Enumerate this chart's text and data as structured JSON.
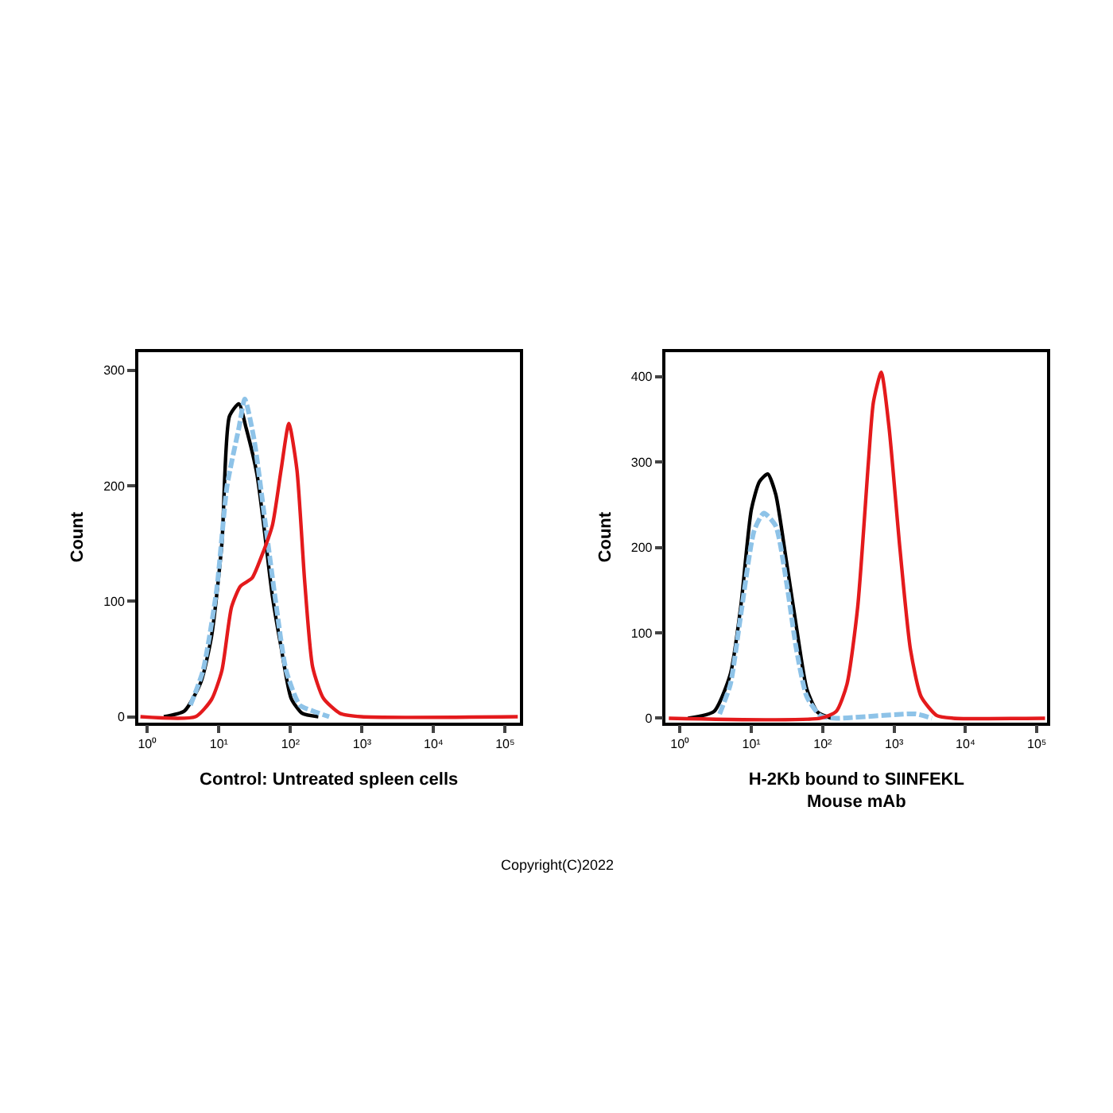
{
  "chart_data": [
    {
      "type": "line",
      "xlabel": "Control: Untreated spleen cells",
      "ylabel": "Count",
      "log": "x",
      "xlim": [
        0.74,
        160000
      ],
      "ylim": [
        -5,
        316
      ],
      "xticks": [
        {
          "value": 1,
          "label": "10⁰"
        },
        {
          "value": 10,
          "label": "10¹"
        },
        {
          "value": 100,
          "label": "10²"
        },
        {
          "value": 1000,
          "label": "10³"
        },
        {
          "value": 10000,
          "label": "10⁴"
        },
        {
          "value": 100000,
          "label": "10⁵"
        }
      ],
      "yticks": [
        0,
        100,
        200,
        300
      ],
      "series": [
        {
          "color": "#000000",
          "line_style": "solid",
          "x": [
            1.7,
            3.3,
            5.6,
            7.9,
            11,
            14,
            19,
            24,
            34,
            44,
            56,
            74,
            102,
            145,
            245
          ],
          "values": [
            0,
            5,
            30,
            70,
            150,
            260,
            271,
            250,
            210,
            157,
            104,
            60,
            16,
            3,
            0
          ]
        },
        {
          "color": "#8ec3e8",
          "line_style": "dashed",
          "x": [
            4.0,
            6.0,
            9.3,
            13,
            19,
            23,
            31,
            44,
            62,
            87,
            135,
            204,
            347
          ],
          "values": [
            10,
            40,
            110,
            200,
            250,
            275,
            240,
            170,
            100,
            40,
            10,
            5,
            0
          ]
        },
        {
          "color": "#e41a1c",
          "line_style": "solid",
          "x": [
            0.8,
            4.7,
            7.9,
            11,
            15,
            20,
            29,
            40,
            56,
            74,
            95,
            123,
            158,
            204,
            288,
            490,
            977,
            150000
          ],
          "values": [
            0,
            0,
            15,
            40,
            95,
            113,
            120,
            140,
            166,
            214,
            254,
            214,
            117,
            43,
            16,
            3,
            0,
            0
          ]
        }
      ]
    },
    {
      "type": "line",
      "xlabel": "H-2Kb bound to SIINFEKL\nMouse mAb",
      "ylabel": "Count",
      "log": "x",
      "xlim": [
        0.63,
        140000
      ],
      "ylim": [
        -5,
        429
      ],
      "xticks": [
        {
          "value": 1,
          "label": "10⁰"
        },
        {
          "value": 10,
          "label": "10¹"
        },
        {
          "value": 100,
          "label": "10²"
        },
        {
          "value": 1000,
          "label": "10³"
        },
        {
          "value": 10000,
          "label": "10⁴"
        },
        {
          "value": 100000,
          "label": "10⁵"
        }
      ],
      "yticks": [
        0,
        100,
        200,
        300,
        400
      ],
      "annotations": [
        "Copyright(C)2022"
      ],
      "series": [
        {
          "color": "#000000",
          "line_style": "solid",
          "x": [
            1.3,
            3.0,
            5.1,
            7.1,
            10,
            13,
            17,
            22,
            31,
            43,
            60,
            85,
            132
          ],
          "values": [
            0,
            8,
            52,
            130,
            244,
            277,
            286,
            262,
            184,
            106,
            34,
            7,
            0
          ]
        },
        {
          "color": "#8ec3e8",
          "line_style": "dashed",
          "x": [
            3.6,
            5.1,
            7.1,
            11,
            15,
            22,
            31,
            43,
            60,
            93,
            155,
            1995,
            3388
          ],
          "values": [
            5,
            40,
            120,
            220,
            240,
            225,
            160,
            80,
            25,
            3,
            0,
            5,
            0
          ]
        },
        {
          "color": "#e41a1c",
          "line_style": "solid",
          "x": [
            0.7,
            93,
            155,
            219,
            309,
            437,
            513,
            661,
            851,
            1202,
            1698,
            2399,
            3981,
            6761,
            130000
          ],
          "values": [
            0,
            0,
            8,
            40,
            130,
            300,
            370,
            405,
            340,
            200,
            80,
            25,
            3,
            0,
            0
          ]
        }
      ]
    }
  ]
}
